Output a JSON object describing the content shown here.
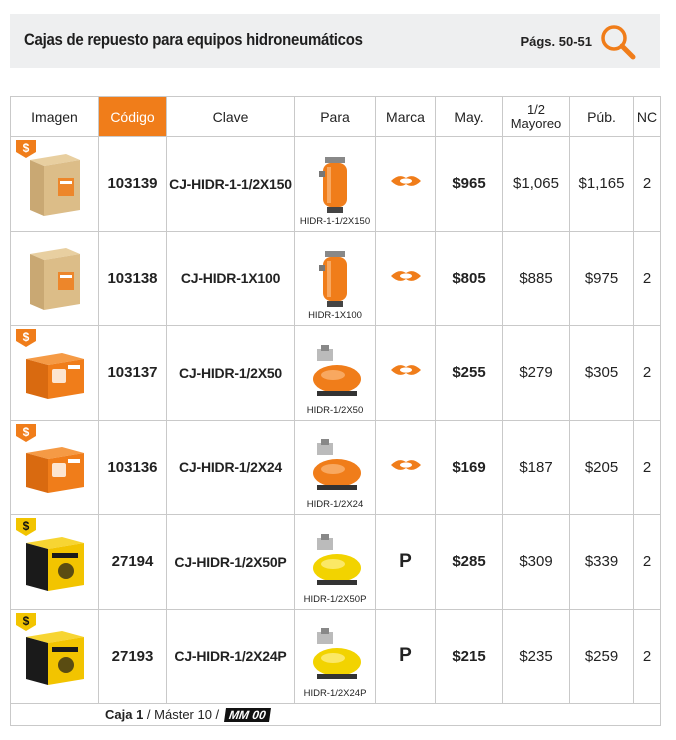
{
  "header": {
    "title": "Cajas de repuesto para equipos hidroneumáticos",
    "pages": "Págs. 50-51",
    "icon": "search-icon"
  },
  "columns": {
    "imagen": "Imagen",
    "codigo": "Código",
    "clave": "Clave",
    "para": "Para",
    "marca": "Marca",
    "may": "May.",
    "mayoreo_top": "1/2",
    "mayoreo_bottom": "Mayoreo",
    "pub": "Púb.",
    "nc": "NC"
  },
  "rows": [
    {
      "codigo": "103139",
      "clave": "CJ-HIDR-1-1/2X150",
      "para": "HIDR-1-1/2X150",
      "marca": "truper-logo",
      "may": "$965",
      "mayoreo": "$1,065",
      "pub": "$1,165",
      "nc": "2",
      "badge": "$"
    },
    {
      "codigo": "103138",
      "clave": "CJ-HIDR-1X100",
      "para": "HIDR-1X100",
      "marca": "truper-logo",
      "may": "$805",
      "mayoreo": "$885",
      "pub": "$975",
      "nc": "2",
      "badge": ""
    },
    {
      "codigo": "103137",
      "clave": "CJ-HIDR-1/2X50",
      "para": "HIDR-1/2X50",
      "marca": "truper-logo",
      "may": "$255",
      "mayoreo": "$279",
      "pub": "$305",
      "nc": "2",
      "badge": "$"
    },
    {
      "codigo": "103136",
      "clave": "CJ-HIDR-1/2X24",
      "para": "HIDR-1/2X24",
      "marca": "truper-logo",
      "may": "$169",
      "mayoreo": "$187",
      "pub": "$205",
      "nc": "2",
      "badge": "$"
    },
    {
      "codigo": "27194",
      "clave": "CJ-HIDR-1/2X50P",
      "para": "HIDR-1/2X50P",
      "marca": "P",
      "may": "$285",
      "mayoreo": "$309",
      "pub": "$339",
      "nc": "2",
      "badge": "$"
    },
    {
      "codigo": "27193",
      "clave": "CJ-HIDR-1/2X24P",
      "para": "HIDR-1/2X24P",
      "marca": "P",
      "may": "$215",
      "mayoreo": "$235",
      "pub": "$259",
      "nc": "2",
      "badge": "$"
    }
  ],
  "footer": {
    "caja": "Caja 1",
    "master": " / Máster 10 / ",
    "mm": "MM 00"
  },
  "colors": {
    "accent": "#f07d1a",
    "badge_orange": "#f07d1a",
    "badge_yellow": "#f2c400"
  }
}
